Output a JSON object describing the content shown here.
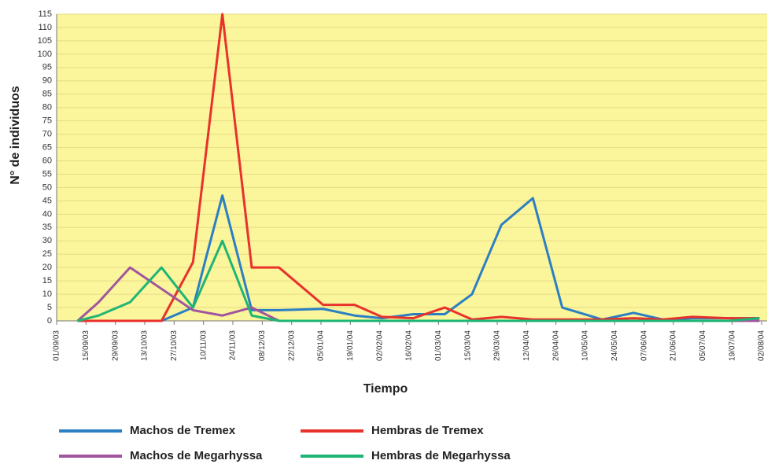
{
  "chart_data": {
    "type": "line",
    "ylabel": "N° de individuos",
    "xlabel": "Tiempo",
    "x": [
      "11/09/03",
      "21/09/03",
      "06/10/03",
      "21/10/03",
      "05/11/03",
      "19/11/03",
      "03/12/03",
      "16/12/03",
      "06/01/04",
      "21/01/04",
      "03/02/04",
      "18/02/04",
      "04/03/04",
      "17/03/04",
      "31/03/04",
      "15/04/04",
      "29/04/04",
      "18/05/04",
      "02/06/04",
      "16/06/04",
      "30/06/04",
      "17/07/04",
      "01/08/04"
    ],
    "series": [
      {
        "name": "Machos de Tremex",
        "color": "#2b7fc3",
        "values": [
          0,
          0,
          0,
          0,
          5,
          47,
          4,
          4,
          4.5,
          2,
          1,
          2.5,
          2.5,
          10,
          36,
          46,
          5,
          0.5,
          3,
          0.5,
          1,
          1,
          1
        ]
      },
      {
        "name": "Hembras de Tremex",
        "color": "#e8322c",
        "values": [
          0,
          0,
          0,
          0,
          22,
          115,
          20,
          20,
          6,
          6,
          1.5,
          1,
          5,
          0.5,
          1.5,
          0.5,
          0.5,
          0.5,
          1,
          0.5,
          1.5,
          1,
          1
        ]
      },
      {
        "name": "Machos de Megarhyssa",
        "color": "#a0559e",
        "values": [
          0,
          7,
          20,
          12,
          4,
          2,
          5,
          0,
          0,
          0,
          0,
          0,
          0,
          0,
          0,
          0,
          0,
          0,
          0,
          0,
          0,
          0,
          0
        ]
      },
      {
        "name": "Hembras de Megarhyssa",
        "color": "#1fb574",
        "values": [
          0,
          2,
          7,
          20,
          5,
          30,
          2,
          0,
          0,
          0,
          0,
          0,
          0,
          0,
          0,
          0,
          0,
          0,
          0,
          0,
          0,
          0,
          1
        ]
      }
    ],
    "xlim": [
      "01/09/03",
      "02/08/04"
    ],
    "xticks": [
      "01/09/03",
      "15/09/03",
      "29/09/03",
      "13/10/03",
      "27/10/03",
      "10/11/03",
      "24/11/03",
      "08/12/03",
      "22/12/03",
      "05/01/04",
      "19/01/04",
      "02/02/04",
      "16/02/04",
      "01/03/04",
      "15/03/04",
      "29/03/04",
      "12/04/04",
      "26/04/04",
      "10/05/04",
      "24/05/04",
      "07/06/04",
      "21/06/04",
      "05/07/04",
      "19/07/04",
      "02/08/04"
    ],
    "ylim": [
      0,
      115
    ],
    "yticks": [
      0,
      5,
      10,
      15,
      20,
      25,
      30,
      35,
      40,
      45,
      50,
      55,
      60,
      65,
      70,
      75,
      80,
      85,
      90,
      95,
      100,
      105,
      110,
      115
    ],
    "grid": true
  }
}
